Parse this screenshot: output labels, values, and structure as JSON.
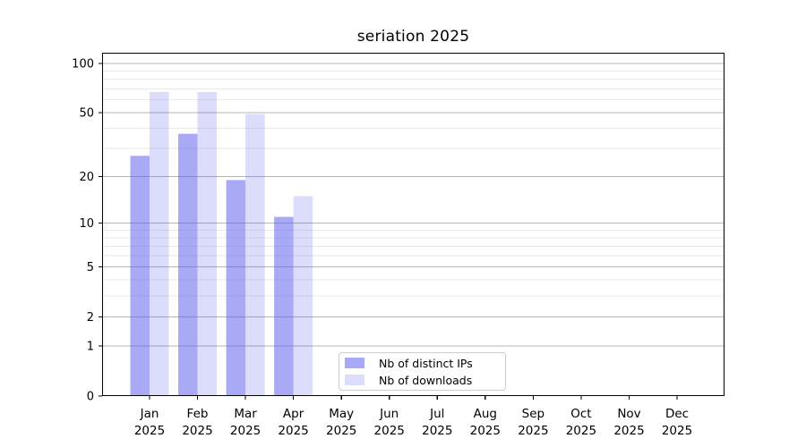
{
  "chart_data": {
    "type": "bar",
    "title": "seriation 2025",
    "categories": [
      "Jan",
      "Feb",
      "Mar",
      "Apr",
      "May",
      "Jun",
      "Jul",
      "Aug",
      "Sep",
      "Oct",
      "Nov",
      "Dec"
    ],
    "year_label": "2025",
    "series": [
      {
        "name": "Nb of distinct IPs",
        "color": "rgba(90,90,235,0.52)",
        "values": [
          27,
          37,
          19,
          11,
          0,
          0,
          0,
          0,
          0,
          0,
          0,
          0
        ]
      },
      {
        "name": "Nb of downloads",
        "color": "rgba(90,90,235,0.21)",
        "values": [
          67,
          67,
          49,
          15,
          0,
          0,
          0,
          0,
          0,
          0,
          0,
          0
        ]
      }
    ],
    "y_scale": "log1p",
    "y_ticks": [
      0,
      1,
      2,
      5,
      10,
      20,
      50,
      100
    ],
    "y_minor_ticks": [
      3,
      4,
      6,
      7,
      8,
      9,
      30,
      40,
      60,
      70,
      80,
      90
    ],
    "ylim": [
      0,
      116
    ],
    "xlabel": "",
    "ylabel": "",
    "grid": true,
    "legend_position": "lower center"
  },
  "legend": {
    "items": [
      "Nb of distinct IPs",
      "Nb of downloads"
    ]
  },
  "colors": {
    "bar_ips": "rgba(90,90,235,0.52)",
    "bar_downloads": "rgba(90,90,235,0.21)",
    "grid_major": "#b5b5b5",
    "grid_minor": "#eaeaea",
    "spine": "#000000",
    "tick_text": "#000000",
    "legend_border": "#cccccc",
    "background": "#ffffff"
  }
}
